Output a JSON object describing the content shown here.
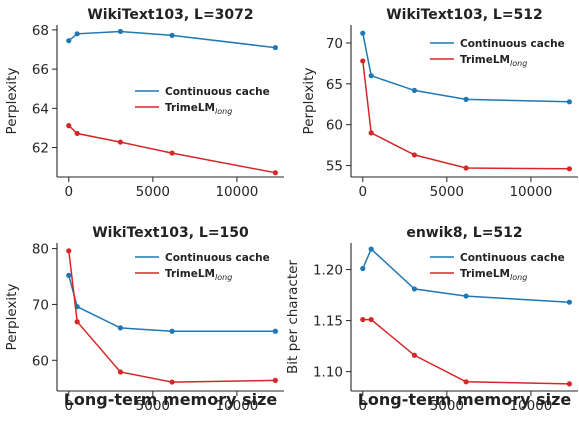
{
  "colors": {
    "continuous": "#1f77b4",
    "trime": "#d62728",
    "axis": "#262626"
  },
  "legend": {
    "continuous": "Continuous cache",
    "trime_main": "TrimeLM",
    "trime_sub": "long"
  },
  "shared_xlabel": "Long-term memory size",
  "chart_data": [
    {
      "type": "line",
      "title": "WikiText103, L=3072",
      "xlabel": "",
      "ylabel": "Perplexity",
      "x": [
        0,
        500,
        3072,
        6144,
        12288
      ],
      "xlim": [
        -700,
        12800
      ],
      "ylim": [
        60.5,
        68.25
      ],
      "xticks": [
        0,
        5000,
        10000
      ],
      "yticks": [
        62,
        64,
        66,
        68
      ],
      "legend_position": "center-right",
      "series": [
        {
          "name": "Continuous cache",
          "key": "continuous",
          "values": [
            67.45,
            67.8,
            67.92,
            67.72,
            67.1
          ]
        },
        {
          "name": "TrimeLM long",
          "key": "trime",
          "values": [
            63.12,
            62.72,
            62.28,
            61.72,
            60.72
          ]
        }
      ]
    },
    {
      "type": "line",
      "title": "WikiText103, L=512",
      "xlabel": "",
      "ylabel": "Perplexity",
      "x": [
        0,
        500,
        3072,
        6144,
        12288
      ],
      "xlim": [
        -700,
        12800
      ],
      "ylim": [
        53.6,
        72.2
      ],
      "xticks": [
        0,
        5000,
        10000
      ],
      "yticks": [
        55,
        60,
        65,
        70
      ],
      "legend_position": "top-right",
      "series": [
        {
          "name": "Continuous cache",
          "key": "continuous",
          "values": [
            71.2,
            66.0,
            64.2,
            63.1,
            62.8
          ]
        },
        {
          "name": "TrimeLM long",
          "key": "trime",
          "values": [
            67.8,
            59.0,
            56.3,
            54.7,
            54.6
          ]
        }
      ]
    },
    {
      "type": "line",
      "title": "WikiText103, L=150",
      "xlabel": "Long-term memory size",
      "ylabel": "Perplexity",
      "x": [
        0,
        500,
        3072,
        6144,
        12288
      ],
      "xlim": [
        -700,
        12800
      ],
      "ylim": [
        54.5,
        81.0
      ],
      "xticks": [
        0,
        5000,
        10000
      ],
      "yticks": [
        60,
        70,
        80
      ],
      "legend_position": "top-right",
      "series": [
        {
          "name": "Continuous cache",
          "key": "continuous",
          "values": [
            75.2,
            69.6,
            65.8,
            65.2,
            65.2
          ]
        },
        {
          "name": "TrimeLM long",
          "key": "trime",
          "values": [
            79.6,
            66.9,
            57.9,
            56.1,
            56.4
          ]
        }
      ]
    },
    {
      "type": "line",
      "title": "enwik8, L=512",
      "xlabel": "Long-term memory size",
      "ylabel": "Bit per character",
      "x": [
        0,
        500,
        3072,
        6144,
        12288
      ],
      "xlim": [
        -700,
        12800
      ],
      "ylim": [
        1.081,
        1.226
      ],
      "xticks": [
        0,
        5000,
        10000
      ],
      "yticks": [
        1.1,
        1.15,
        1.2
      ],
      "legend_position": "top-right",
      "series": [
        {
          "name": "Continuous cache",
          "key": "continuous",
          "values": [
            1.201,
            1.22,
            1.181,
            1.174,
            1.168
          ]
        },
        {
          "name": "TrimeLM long",
          "key": "trime",
          "values": [
            1.151,
            1.151,
            1.116,
            1.09,
            1.088
          ]
        }
      ]
    }
  ]
}
